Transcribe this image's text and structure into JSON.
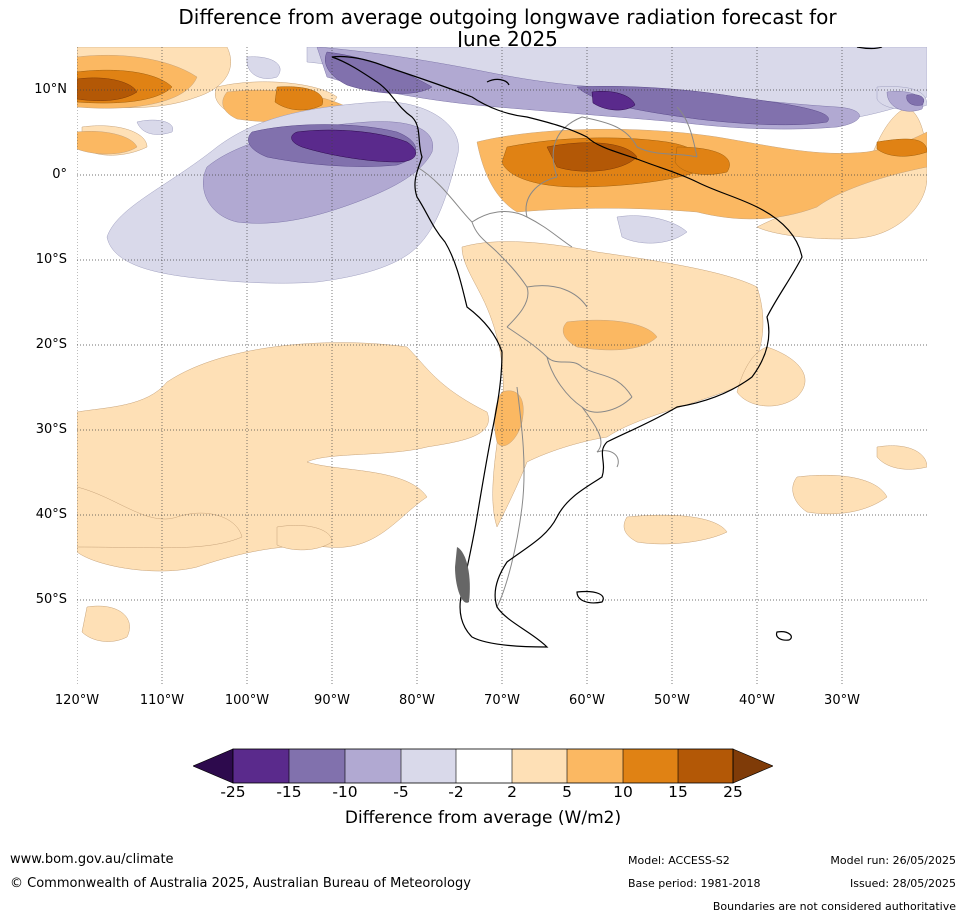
{
  "title": {
    "line1": "Difference from average outgoing longwave radiation forecast for",
    "line2": "June 2025"
  },
  "map": {
    "lat_labels": [
      "10°N",
      "0°",
      "10°S",
      "20°S",
      "30°S",
      "40°S",
      "50°S"
    ],
    "lon_labels": [
      "120°W",
      "110°W",
      "100°W",
      "90°W",
      "80°W",
      "70°W",
      "60°W",
      "50°W",
      "40°W",
      "30°W"
    ]
  },
  "colorbar": {
    "ticks": [
      "-25",
      "-15",
      "-10",
      "-5",
      "-2",
      "2",
      "5",
      "10",
      "15",
      "25"
    ],
    "label": "Difference from average (W/m2)",
    "colors": {
      "below_-25": "#2d0a4d",
      "-25_-15": "#5a2a8c",
      "-15_-10": "#8171ad",
      "-10_-5": "#b1a9d2",
      "-5_-2": "#d9d9ea",
      "-2_2": "#ffffff",
      "2_5": "#fee0b6",
      "5_10": "#fbb862",
      "10_15": "#e08214",
      "15_25": "#b35806",
      "above_25": "#7f3b08"
    }
  },
  "footer": {
    "url": "www.bom.gov.au/climate",
    "copyright": "© Commonwealth of Australia 2025, Australian Bureau of Meteorology",
    "model": "Model: ACCESS-S2",
    "base_period": "Base period: 1981-2018",
    "model_run": "Model run: 26/05/2025",
    "issued": "Issued: 28/05/2025",
    "disclaimer": "Boundaries are not considered authoritative"
  }
}
